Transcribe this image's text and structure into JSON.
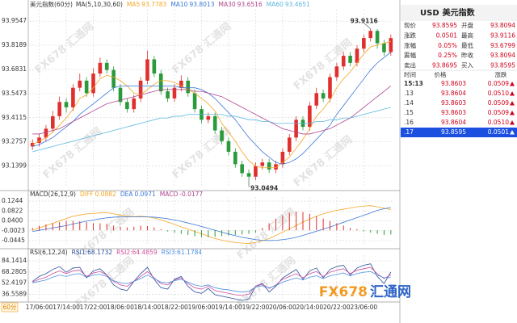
{
  "chart_data": [
    {
      "type": "candlestick",
      "title": "美元指数(60分)",
      "indicator": "MA(5,10,30,60)",
      "up_color": "#e0302e",
      "down_color": "#2a9a3a",
      "categories": [
        null,
        "17/06:00",
        null,
        null,
        null,
        "17/14:00",
        null,
        null,
        null,
        "17/22:00",
        null,
        null,
        null,
        "18/06:00",
        null,
        null,
        null,
        "18/14:00",
        null,
        null,
        null,
        "18/22:00",
        null,
        null,
        null,
        "19/06:00",
        null,
        null,
        null,
        "19/14:00",
        null,
        null,
        null,
        "19/22:00",
        null,
        null,
        null,
        "20/06:00",
        null,
        null,
        null,
        "20/14:00",
        null,
        null,
        null,
        "20/22:00",
        null,
        null,
        null,
        "23/06:00",
        null,
        null,
        null,
        null
      ],
      "open": [
        93.25,
        93.27,
        93.3,
        93.35,
        93.42,
        93.5,
        93.47,
        93.58,
        93.62,
        93.55,
        93.66,
        93.72,
        93.68,
        93.58,
        93.5,
        93.46,
        93.52,
        93.62,
        93.74,
        93.66,
        93.56,
        93.52,
        93.58,
        93.62,
        93.55,
        93.46,
        93.4,
        93.42,
        93.34,
        93.28,
        93.22,
        93.15,
        93.1,
        93.08,
        93.14,
        93.16,
        93.12,
        93.15,
        93.22,
        93.3,
        93.4,
        93.36,
        93.48,
        93.55,
        93.52,
        93.64,
        93.7,
        93.76,
        93.72,
        93.8,
        93.86,
        93.9,
        93.83,
        93.78
      ],
      "high": [
        93.29,
        93.32,
        93.37,
        93.45,
        93.53,
        93.52,
        93.6,
        93.66,
        93.64,
        93.69,
        93.75,
        93.74,
        93.7,
        93.6,
        93.52,
        93.54,
        93.64,
        93.79,
        93.76,
        93.68,
        93.58,
        93.6,
        93.65,
        93.64,
        93.57,
        93.48,
        93.44,
        93.44,
        93.36,
        93.3,
        93.24,
        93.17,
        93.12,
        93.16,
        93.18,
        93.18,
        93.17,
        93.24,
        93.32,
        93.42,
        93.42,
        93.5,
        93.58,
        93.57,
        93.66,
        93.72,
        93.78,
        93.78,
        93.82,
        93.88,
        93.9116,
        93.91,
        93.85,
        93.88
      ],
      "low": [
        93.23,
        93.25,
        93.28,
        93.33,
        93.4,
        93.44,
        93.45,
        93.56,
        93.53,
        93.53,
        93.64,
        93.66,
        93.56,
        93.48,
        93.44,
        93.44,
        93.5,
        93.6,
        93.64,
        93.54,
        93.5,
        93.5,
        93.56,
        93.53,
        93.44,
        93.38,
        93.38,
        93.32,
        93.26,
        93.2,
        93.13,
        93.08,
        93.0494,
        93.06,
        93.12,
        93.1,
        93.1,
        93.13,
        93.2,
        93.28,
        93.34,
        93.34,
        93.46,
        93.5,
        93.5,
        93.62,
        93.68,
        93.7,
        93.7,
        93.78,
        93.84,
        93.8,
        93.76,
        93.76
      ],
      "close": [
        93.27,
        93.3,
        93.35,
        93.42,
        93.5,
        93.47,
        93.58,
        93.62,
        93.55,
        93.66,
        93.72,
        93.68,
        93.58,
        93.5,
        93.46,
        93.52,
        93.62,
        93.74,
        93.66,
        93.56,
        93.52,
        93.58,
        93.62,
        93.55,
        93.46,
        93.4,
        93.42,
        93.34,
        93.28,
        93.22,
        93.15,
        93.1,
        93.08,
        93.14,
        93.16,
        93.12,
        93.15,
        93.22,
        93.3,
        93.4,
        93.36,
        93.48,
        93.55,
        93.52,
        93.64,
        93.7,
        93.76,
        93.72,
        93.8,
        93.86,
        93.9,
        93.83,
        93.78,
        93.8595
      ],
      "high_mark": 50,
      "low_mark": 32,
      "series": [
        {
          "name": "MA5",
          "color": "#f5a623",
          "current": 93.7783,
          "values": [
            93.26,
            93.28,
            93.3,
            93.33,
            93.37,
            93.41,
            93.46,
            93.52,
            93.54,
            93.58,
            93.63,
            93.65,
            93.64,
            93.62,
            93.59,
            93.55,
            93.54,
            93.57,
            93.6,
            93.62,
            93.62,
            93.61,
            93.59,
            93.57,
            93.55,
            93.52,
            93.49,
            93.45,
            93.38,
            93.33,
            93.28,
            93.22,
            93.17,
            93.14,
            93.13,
            93.13,
            93.13,
            93.16,
            93.19,
            93.24,
            93.29,
            93.35,
            93.42,
            93.46,
            93.51,
            93.58,
            93.63,
            93.67,
            93.72,
            93.77,
            93.81,
            93.82,
            93.83,
            93.84
          ]
        },
        {
          "name": "MA10",
          "color": "#3a78d8",
          "current": 93.8013,
          "values": [
            93.25,
            93.26,
            93.28,
            93.3,
            93.33,
            93.36,
            93.39,
            93.43,
            93.46,
            93.49,
            93.52,
            93.55,
            93.58,
            93.59,
            93.59,
            93.59,
            93.59,
            93.59,
            93.59,
            93.59,
            93.59,
            93.59,
            93.58,
            93.58,
            93.58,
            93.57,
            93.55,
            93.52,
            93.48,
            93.44,
            93.4,
            93.35,
            93.3,
            93.26,
            93.22,
            93.19,
            93.16,
            93.15,
            93.16,
            93.18,
            93.21,
            93.25,
            93.29,
            93.33,
            93.37,
            93.43,
            93.48,
            93.53,
            93.58,
            93.63,
            93.68,
            93.72,
            93.75,
            93.78
          ]
        },
        {
          "name": "MA30",
          "color": "#b0458f",
          "current": 93.6516,
          "values": [
            93.32,
            93.32,
            93.33,
            93.34,
            93.35,
            93.37,
            93.39,
            93.41,
            93.43,
            93.45,
            93.47,
            93.49,
            93.5,
            93.51,
            93.52,
            93.53,
            93.54,
            93.55,
            93.56,
            93.57,
            93.57,
            93.57,
            93.57,
            93.57,
            93.56,
            93.56,
            93.55,
            93.54,
            93.53,
            93.51,
            93.49,
            93.47,
            93.45,
            93.43,
            93.41,
            93.39,
            93.37,
            93.35,
            93.34,
            93.33,
            93.32,
            93.32,
            93.33,
            93.34,
            93.35,
            93.37,
            93.39,
            93.41,
            93.44,
            93.47,
            93.5,
            93.53,
            93.56,
            93.59
          ]
        },
        {
          "name": "MA60",
          "color": "#5bb8e0",
          "current": 93.4651,
          "values": [
            93.22,
            93.23,
            93.24,
            93.25,
            93.26,
            93.27,
            93.28,
            93.29,
            93.3,
            93.31,
            93.32,
            93.33,
            93.34,
            93.35,
            93.36,
            93.37,
            93.38,
            93.39,
            93.4,
            93.41,
            93.41,
            93.42,
            93.42,
            93.43,
            93.43,
            93.43,
            93.43,
            93.43,
            93.43,
            93.42,
            93.42,
            93.41,
            93.4,
            93.4,
            93.39,
            93.39,
            93.38,
            93.38,
            93.38,
            93.38,
            93.38,
            93.38,
            93.39,
            93.39,
            93.4,
            93.4,
            93.41,
            93.41,
            93.42,
            93.43,
            93.44,
            93.45,
            93.46,
            93.47
          ]
        }
      ],
      "ylim": [
        93.02,
        94.01
      ],
      "yticks": [
        93.9547,
        93.8189,
        93.6831,
        93.5473,
        93.4115,
        93.2757,
        93.1399
      ],
      "grid": true
    },
    {
      "type": "macd",
      "title": "MACD(26,12,9)",
      "up_color": "#e0302e",
      "down_color": "#2a9a3a",
      "series": [
        {
          "name": "DIFF",
          "color": "#f5a623",
          "current": 0.0882,
          "values": [
            0.0,
            0.01,
            0.02,
            0.03,
            0.04,
            0.05,
            0.06,
            0.065,
            0.07,
            0.072,
            0.074,
            0.075,
            0.07,
            0.065,
            0.06,
            0.058,
            0.06,
            0.058,
            0.052,
            0.045,
            0.035,
            0.025,
            0.015,
            0.005,
            -0.005,
            -0.015,
            -0.025,
            -0.035,
            -0.042,
            -0.048,
            -0.052,
            -0.055,
            -0.056,
            -0.052,
            -0.045,
            -0.035,
            -0.022,
            -0.008,
            0.006,
            0.02,
            0.035,
            0.048,
            0.06,
            0.07,
            0.078,
            0.085,
            0.09,
            0.095,
            0.1,
            0.103,
            0.105,
            0.1,
            0.094,
            0.0882
          ]
        },
        {
          "name": "DEA",
          "color": "#3a78d8",
          "current": 0.0971,
          "values": [
            -0.005,
            0.0,
            0.005,
            0.01,
            0.015,
            0.02,
            0.027,
            0.033,
            0.039,
            0.044,
            0.049,
            0.053,
            0.056,
            0.057,
            0.057,
            0.057,
            0.057,
            0.057,
            0.056,
            0.053,
            0.049,
            0.044,
            0.038,
            0.031,
            0.024,
            0.016,
            0.008,
            0.0,
            -0.008,
            -0.016,
            -0.023,
            -0.03,
            -0.035,
            -0.04,
            -0.043,
            -0.044,
            -0.043,
            -0.04,
            -0.036,
            -0.03,
            -0.022,
            -0.013,
            -0.004,
            0.005,
            0.014,
            0.024,
            0.034,
            0.044,
            0.054,
            0.064,
            0.074,
            0.085,
            0.092,
            0.0971
          ]
        },
        {
          "name": "MACD",
          "color": "#b0458f",
          "kind": "bar",
          "current": -0.0177,
          "values": [
            0.01,
            0.02,
            0.025,
            0.03,
            0.035,
            0.04,
            0.04,
            0.038,
            0.035,
            0.03,
            0.03,
            0.028,
            0.02,
            0.015,
            0.012,
            0.015,
            0.02,
            0.018,
            0.012,
            0.005,
            -0.005,
            -0.01,
            -0.015,
            -0.02,
            -0.025,
            -0.03,
            -0.03,
            -0.028,
            -0.025,
            -0.022,
            -0.02,
            -0.018,
            -0.015,
            -0.01,
            0.01,
            0.03,
            0.05,
            0.065,
            0.075,
            0.08,
            0.078,
            0.07,
            0.06,
            0.05,
            0.04,
            0.03,
            0.02,
            0.01,
            0.005,
            -0.005,
            -0.01,
            -0.015,
            -0.02,
            -0.018
          ]
        }
      ],
      "ylim": [
        -0.058,
        0.135
      ],
      "yticks": [
        0.1244,
        0.0822,
        {
          "value": 0.04,
          "label": "0.0400"
        },
        -0.0023,
        -0.0445
      ],
      "grid": true
    },
    {
      "type": "line",
      "title": "RSI(6,12,24)",
      "series": [
        {
          "name": "RSI1:",
          "color": "#2a4f9a",
          "current": 68.1732,
          "values": [
            55,
            62,
            66,
            72,
            76,
            68,
            74,
            75,
            60,
            70,
            73,
            64,
            50,
            44,
            42,
            55,
            66,
            75,
            58,
            46,
            44,
            58,
            62,
            48,
            40,
            38,
            45,
            36,
            34,
            32,
            30,
            28,
            30,
            48,
            52,
            40,
            48,
            60,
            66,
            72,
            58,
            70,
            74,
            60,
            72,
            76,
            78,
            64,
            74,
            78,
            80,
            62,
            52,
            68.1732
          ]
        },
        {
          "name": "RSI2:",
          "color": "#d04f9e",
          "current": 64.4859,
          "values": [
            54,
            58,
            61,
            66,
            70,
            66,
            70,
            71,
            62,
            67,
            69,
            64,
            55,
            50,
            48,
            55,
            62,
            69,
            60,
            52,
            50,
            57,
            60,
            52,
            46,
            44,
            48,
            42,
            40,
            38,
            36,
            35,
            37,
            48,
            51,
            45,
            50,
            58,
            62,
            66,
            60,
            66,
            69,
            62,
            68,
            71,
            73,
            66,
            71,
            73,
            75,
            66,
            59,
            64.4859
          ]
        },
        {
          "name": "RSI3:",
          "color": "#4a90e2",
          "current": 61.1784,
          "values": [
            53,
            55,
            57,
            61,
            64,
            62,
            65,
            66,
            61,
            64,
            65,
            62,
            56,
            53,
            52,
            55,
            59,
            64,
            59,
            54,
            53,
            56,
            58,
            54,
            50,
            48,
            50,
            46,
            44,
            43,
            41,
            40,
            41,
            47,
            49,
            46,
            49,
            54,
            57,
            60,
            57,
            61,
            63,
            59,
            63,
            65,
            67,
            63,
            66,
            68,
            69,
            64,
            60,
            61.1784
          ]
        }
      ],
      "ylim": [
        28,
        90
      ],
      "yticks": [
        84.1414,
        68.2805,
        52.4197,
        36.5589
      ],
      "grid": true
    }
  ],
  "period": "60分",
  "watermark": "FX678 汇通网",
  "logo": {
    "brand": "FX678",
    "name": "汇通网"
  },
  "quote": {
    "symbol": "USD",
    "name": "美元指数",
    "rows": [
      [
        "现价",
        "93.8595",
        "开盘",
        "93.8094"
      ],
      [
        "涨跌",
        "0.0501",
        "最高",
        "93.9116"
      ],
      [
        "涨幅",
        "0.05%",
        "最低",
        "93.6799"
      ],
      [
        "震幅",
        "0.25%",
        "昨收",
        "93.8094"
      ],
      [
        "卖出",
        "93.8695",
        "买入",
        "93.8595"
      ]
    ]
  },
  "trades": {
    "headers": [
      "时间",
      "价格",
      "涨跌"
    ],
    "selected": 5,
    "rows": [
      [
        "15:13",
        "93.8603",
        "0.0509"
      ],
      [
        ".13",
        "93.8604",
        "0.0510"
      ],
      [
        ".14",
        "93.8603",
        "0.0509"
      ],
      [
        ".15",
        "93.8603",
        "0.0509"
      ],
      [
        ".16",
        "93.8604",
        "0.0510"
      ],
      [
        ".17",
        "93.8595",
        "0.0501"
      ]
    ]
  }
}
